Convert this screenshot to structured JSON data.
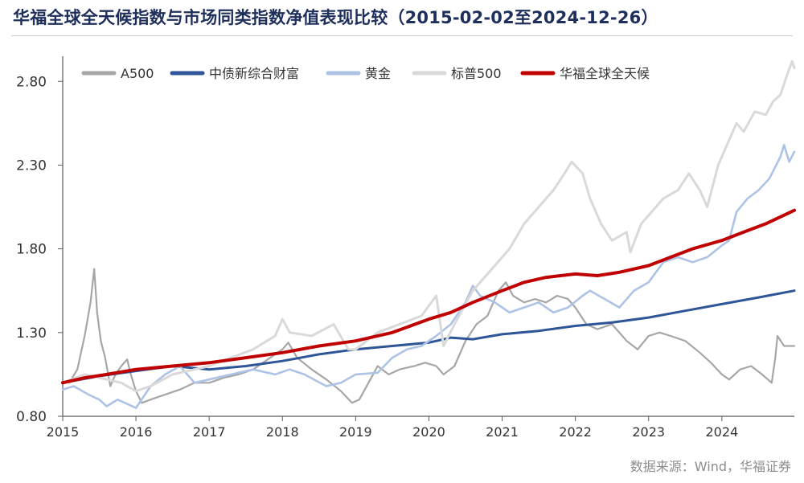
{
  "title": "华福全球全天候指数与市场同类指数净值表现比较（2015-02-02至2024-12-26）",
  "source": "数据来源：Wind，华福证券",
  "chart_data": {
    "type": "line",
    "title": "华福全球全天候指数与市场同类指数净值表现比较（2015-02-02至2024-12-26）",
    "xlabel": "",
    "ylabel": "",
    "xlim": [
      2015.0,
      2024.99
    ],
    "ylim": [
      0.8,
      2.95
    ],
    "y_ticks": [
      "0.80",
      "1.30",
      "1.80",
      "2.30",
      "2.80"
    ],
    "x_ticks": [
      "2015",
      "2016",
      "2017",
      "2018",
      "2019",
      "2020",
      "2021",
      "2022",
      "2023",
      "2024"
    ],
    "grid": false,
    "legend": "top",
    "series": [
      {
        "name": "A500",
        "color": "#a6a6a6",
        "points": [
          [
            2015.09,
            1.0
          ],
          [
            2015.2,
            1.08
          ],
          [
            2015.3,
            1.28
          ],
          [
            2015.38,
            1.48
          ],
          [
            2015.43,
            1.68
          ],
          [
            2015.47,
            1.42
          ],
          [
            2015.52,
            1.25
          ],
          [
            2015.58,
            1.15
          ],
          [
            2015.65,
            0.98
          ],
          [
            2015.72,
            1.05
          ],
          [
            2015.8,
            1.1
          ],
          [
            2015.88,
            1.14
          ],
          [
            2015.93,
            1.05
          ],
          [
            2016.0,
            0.95
          ],
          [
            2016.08,
            0.88
          ],
          [
            2016.2,
            0.9
          ],
          [
            2016.4,
            0.93
          ],
          [
            2016.6,
            0.96
          ],
          [
            2016.8,
            1.0
          ],
          [
            2017.0,
            1.0
          ],
          [
            2017.2,
            1.03
          ],
          [
            2017.4,
            1.05
          ],
          [
            2017.6,
            1.08
          ],
          [
            2017.8,
            1.14
          ],
          [
            2018.0,
            1.2
          ],
          [
            2018.08,
            1.24
          ],
          [
            2018.2,
            1.15
          ],
          [
            2018.4,
            1.08
          ],
          [
            2018.6,
            1.02
          ],
          [
            2018.8,
            0.95
          ],
          [
            2018.95,
            0.88
          ],
          [
            2019.05,
            0.9
          ],
          [
            2019.2,
            1.02
          ],
          [
            2019.3,
            1.1
          ],
          [
            2019.45,
            1.05
          ],
          [
            2019.6,
            1.08
          ],
          [
            2019.8,
            1.1
          ],
          [
            2019.95,
            1.12
          ],
          [
            2020.1,
            1.1
          ],
          [
            2020.2,
            1.05
          ],
          [
            2020.35,
            1.1
          ],
          [
            2020.5,
            1.25
          ],
          [
            2020.65,
            1.35
          ],
          [
            2020.8,
            1.4
          ],
          [
            2020.95,
            1.55
          ],
          [
            2021.05,
            1.6
          ],
          [
            2021.15,
            1.52
          ],
          [
            2021.3,
            1.48
          ],
          [
            2021.45,
            1.5
          ],
          [
            2021.6,
            1.48
          ],
          [
            2021.75,
            1.52
          ],
          [
            2021.9,
            1.5
          ],
          [
            2022.0,
            1.45
          ],
          [
            2022.15,
            1.35
          ],
          [
            2022.3,
            1.32
          ],
          [
            2022.5,
            1.35
          ],
          [
            2022.7,
            1.25
          ],
          [
            2022.85,
            1.2
          ],
          [
            2023.0,
            1.28
          ],
          [
            2023.15,
            1.3
          ],
          [
            2023.3,
            1.28
          ],
          [
            2023.5,
            1.25
          ],
          [
            2023.7,
            1.18
          ],
          [
            2023.85,
            1.12
          ],
          [
            2024.0,
            1.05
          ],
          [
            2024.1,
            1.02
          ],
          [
            2024.25,
            1.08
          ],
          [
            2024.4,
            1.1
          ],
          [
            2024.55,
            1.05
          ],
          [
            2024.68,
            1.0
          ],
          [
            2024.73,
            1.15
          ],
          [
            2024.76,
            1.28
          ],
          [
            2024.85,
            1.22
          ],
          [
            2024.99,
            1.22
          ]
        ]
      },
      {
        "name": "中债新综合财富",
        "color": "#2e5597",
        "points": [
          [
            2015.0,
            1.0
          ],
          [
            2015.5,
            1.04
          ],
          [
            2016.0,
            1.07
          ],
          [
            2016.5,
            1.1
          ],
          [
            2017.0,
            1.08
          ],
          [
            2017.5,
            1.1
          ],
          [
            2018.0,
            1.13
          ],
          [
            2018.5,
            1.17
          ],
          [
            2019.0,
            1.2
          ],
          [
            2019.5,
            1.22
          ],
          [
            2020.0,
            1.24
          ],
          [
            2020.3,
            1.27
          ],
          [
            2020.6,
            1.26
          ],
          [
            2021.0,
            1.29
          ],
          [
            2021.5,
            1.31
          ],
          [
            2022.0,
            1.34
          ],
          [
            2022.5,
            1.36
          ],
          [
            2023.0,
            1.39
          ],
          [
            2023.5,
            1.43
          ],
          [
            2024.0,
            1.47
          ],
          [
            2024.5,
            1.51
          ],
          [
            2024.99,
            1.55
          ]
        ]
      },
      {
        "name": "黄金",
        "color": "#adc3e6",
        "points": [
          [
            2015.0,
            0.96
          ],
          [
            2015.15,
            0.98
          ],
          [
            2015.35,
            0.93
          ],
          [
            2015.5,
            0.9
          ],
          [
            2015.6,
            0.86
          ],
          [
            2015.75,
            0.9
          ],
          [
            2015.9,
            0.87
          ],
          [
            2016.0,
            0.85
          ],
          [
            2016.2,
            0.98
          ],
          [
            2016.4,
            1.05
          ],
          [
            2016.6,
            1.1
          ],
          [
            2016.8,
            1.0
          ],
          [
            2017.0,
            1.02
          ],
          [
            2017.3,
            1.05
          ],
          [
            2017.6,
            1.08
          ],
          [
            2017.9,
            1.05
          ],
          [
            2018.1,
            1.08
          ],
          [
            2018.3,
            1.05
          ],
          [
            2018.6,
            0.98
          ],
          [
            2018.8,
            1.0
          ],
          [
            2019.0,
            1.05
          ],
          [
            2019.3,
            1.06
          ],
          [
            2019.5,
            1.15
          ],
          [
            2019.7,
            1.2
          ],
          [
            2019.9,
            1.22
          ],
          [
            2020.1,
            1.28
          ],
          [
            2020.3,
            1.35
          ],
          [
            2020.5,
            1.48
          ],
          [
            2020.6,
            1.58
          ],
          [
            2020.7,
            1.52
          ],
          [
            2020.9,
            1.48
          ],
          [
            2021.1,
            1.42
          ],
          [
            2021.3,
            1.45
          ],
          [
            2021.5,
            1.48
          ],
          [
            2021.7,
            1.42
          ],
          [
            2021.9,
            1.45
          ],
          [
            2022.1,
            1.52
          ],
          [
            2022.2,
            1.55
          ],
          [
            2022.4,
            1.5
          ],
          [
            2022.6,
            1.45
          ],
          [
            2022.8,
            1.55
          ],
          [
            2023.0,
            1.6
          ],
          [
            2023.2,
            1.72
          ],
          [
            2023.4,
            1.75
          ],
          [
            2023.6,
            1.72
          ],
          [
            2023.8,
            1.75
          ],
          [
            2024.0,
            1.82
          ],
          [
            2024.1,
            1.85
          ],
          [
            2024.2,
            2.02
          ],
          [
            2024.35,
            2.1
          ],
          [
            2024.5,
            2.15
          ],
          [
            2024.65,
            2.22
          ],
          [
            2024.8,
            2.35
          ],
          [
            2024.85,
            2.42
          ],
          [
            2024.92,
            2.32
          ],
          [
            2024.99,
            2.38
          ]
        ]
      },
      {
        "name": "标普500",
        "color": "#d9d9d9",
        "points": [
          [
            2015.0,
            1.0
          ],
          [
            2015.3,
            1.05
          ],
          [
            2015.6,
            1.02
          ],
          [
            2015.8,
            1.0
          ],
          [
            2016.0,
            0.95
          ],
          [
            2016.2,
            0.98
          ],
          [
            2016.5,
            1.05
          ],
          [
            2016.8,
            1.08
          ],
          [
            2017.0,
            1.1
          ],
          [
            2017.3,
            1.15
          ],
          [
            2017.6,
            1.2
          ],
          [
            2017.9,
            1.28
          ],
          [
            2018.0,
            1.38
          ],
          [
            2018.1,
            1.3
          ],
          [
            2018.4,
            1.28
          ],
          [
            2018.7,
            1.35
          ],
          [
            2018.9,
            1.2
          ],
          [
            2019.0,
            1.2
          ],
          [
            2019.3,
            1.3
          ],
          [
            2019.6,
            1.35
          ],
          [
            2019.9,
            1.4
          ],
          [
            2020.1,
            1.52
          ],
          [
            2020.2,
            1.22
          ],
          [
            2020.35,
            1.35
          ],
          [
            2020.6,
            1.55
          ],
          [
            2020.9,
            1.7
          ],
          [
            2021.1,
            1.8
          ],
          [
            2021.3,
            1.95
          ],
          [
            2021.5,
            2.05
          ],
          [
            2021.7,
            2.15
          ],
          [
            2021.85,
            2.25
          ],
          [
            2021.95,
            2.32
          ],
          [
            2022.1,
            2.25
          ],
          [
            2022.2,
            2.1
          ],
          [
            2022.35,
            1.95
          ],
          [
            2022.5,
            1.85
          ],
          [
            2022.7,
            1.9
          ],
          [
            2022.75,
            1.78
          ],
          [
            2022.9,
            1.95
          ],
          [
            2023.0,
            2.0
          ],
          [
            2023.2,
            2.1
          ],
          [
            2023.4,
            2.15
          ],
          [
            2023.55,
            2.25
          ],
          [
            2023.7,
            2.15
          ],
          [
            2023.8,
            2.05
          ],
          [
            2023.95,
            2.3
          ],
          [
            2024.1,
            2.45
          ],
          [
            2024.2,
            2.55
          ],
          [
            2024.3,
            2.5
          ],
          [
            2024.45,
            2.62
          ],
          [
            2024.6,
            2.6
          ],
          [
            2024.7,
            2.68
          ],
          [
            2024.8,
            2.72
          ],
          [
            2024.9,
            2.85
          ],
          [
            2024.96,
            2.92
          ],
          [
            2024.99,
            2.88
          ]
        ]
      },
      {
        "name": "华福全球全天候",
        "color": "#c00000",
        "points": [
          [
            2015.0,
            1.0
          ],
          [
            2015.3,
            1.03
          ],
          [
            2015.6,
            1.05
          ],
          [
            2016.0,
            1.08
          ],
          [
            2016.5,
            1.1
          ],
          [
            2017.0,
            1.12
          ],
          [
            2017.5,
            1.15
          ],
          [
            2018.0,
            1.18
          ],
          [
            2018.5,
            1.22
          ],
          [
            2019.0,
            1.25
          ],
          [
            2019.5,
            1.3
          ],
          [
            2020.0,
            1.38
          ],
          [
            2020.3,
            1.42
          ],
          [
            2020.6,
            1.48
          ],
          [
            2021.0,
            1.55
          ],
          [
            2021.3,
            1.6
          ],
          [
            2021.6,
            1.63
          ],
          [
            2022.0,
            1.65
          ],
          [
            2022.3,
            1.64
          ],
          [
            2022.6,
            1.66
          ],
          [
            2023.0,
            1.7
          ],
          [
            2023.3,
            1.75
          ],
          [
            2023.6,
            1.8
          ],
          [
            2024.0,
            1.85
          ],
          [
            2024.3,
            1.9
          ],
          [
            2024.6,
            1.95
          ],
          [
            2024.99,
            2.03
          ]
        ]
      }
    ]
  }
}
